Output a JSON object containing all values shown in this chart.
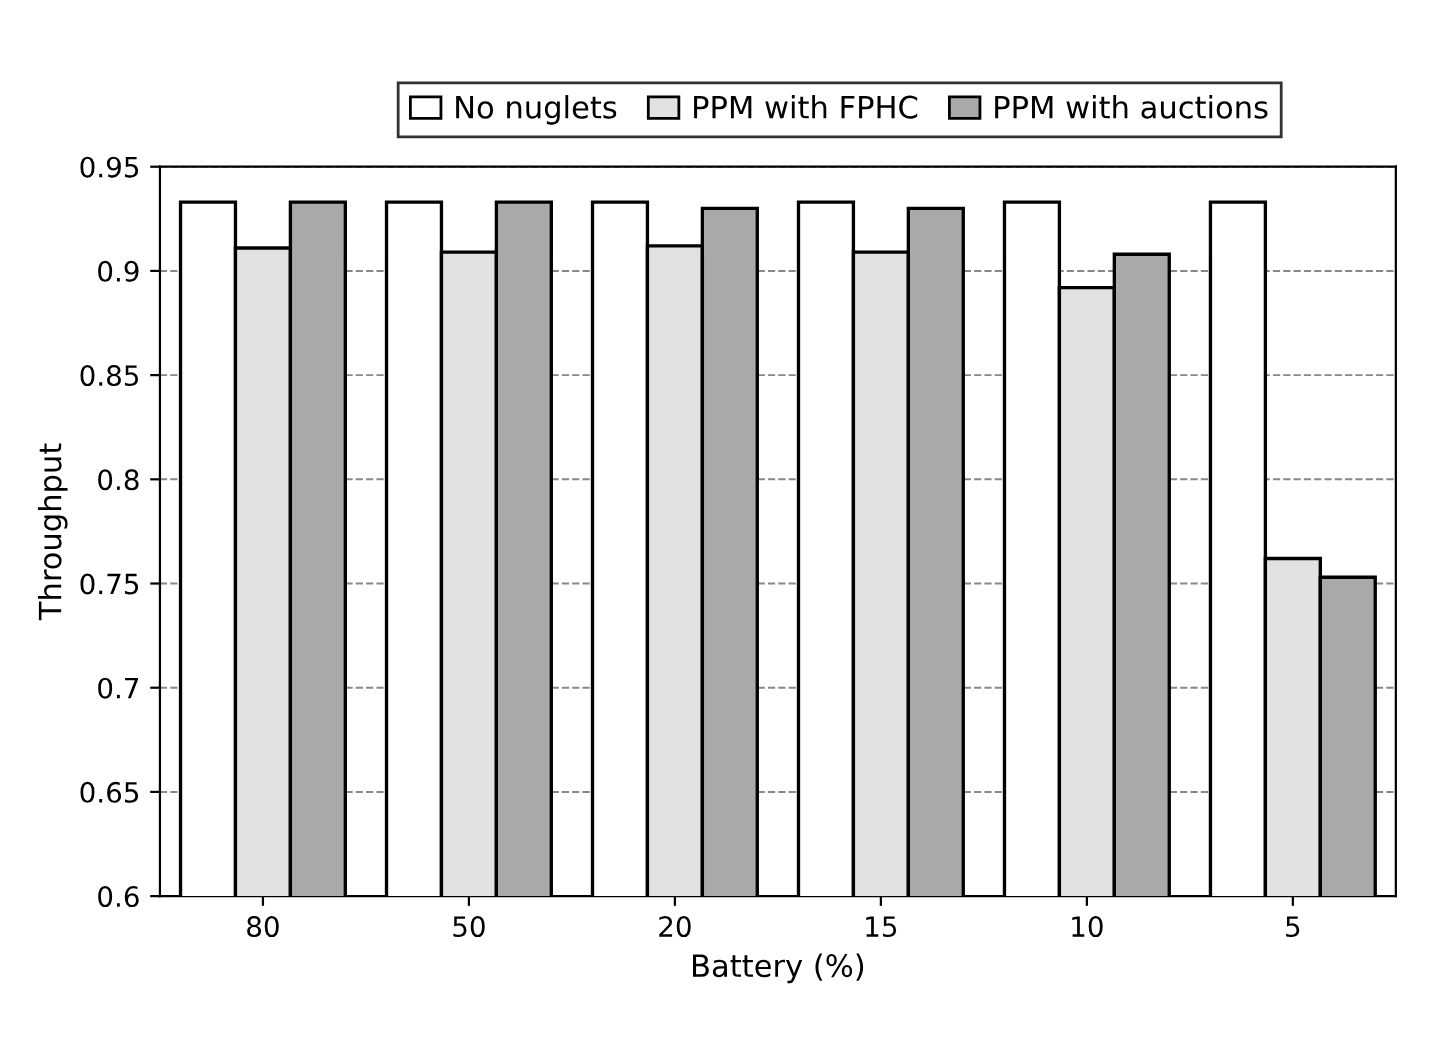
{
  "chart_data": {
    "type": "bar",
    "xlabel": "Battery (%)",
    "ylabel": "Throughput",
    "categories": [
      "80",
      "50",
      "20",
      "15",
      "10",
      "5"
    ],
    "series": [
      {
        "name": "No nuglets",
        "color": "#ffffff",
        "values": [
          0.933,
          0.933,
          0.933,
          0.933,
          0.933,
          0.933
        ]
      },
      {
        "name": "PPM with FPHC",
        "color": "#e2e2e2",
        "values": [
          0.911,
          0.909,
          0.912,
          0.909,
          0.892,
          0.762
        ]
      },
      {
        "name": "PPM with auctions",
        "color": "#a9a9a9",
        "values": [
          0.933,
          0.933,
          0.93,
          0.93,
          0.908,
          0.753
        ]
      }
    ],
    "ylim": [
      0.6,
      0.95
    ],
    "yticks": [
      0.6,
      0.65,
      0.7,
      0.75,
      0.8,
      0.85,
      0.9,
      0.95
    ],
    "grid": "y",
    "legend": "top"
  }
}
